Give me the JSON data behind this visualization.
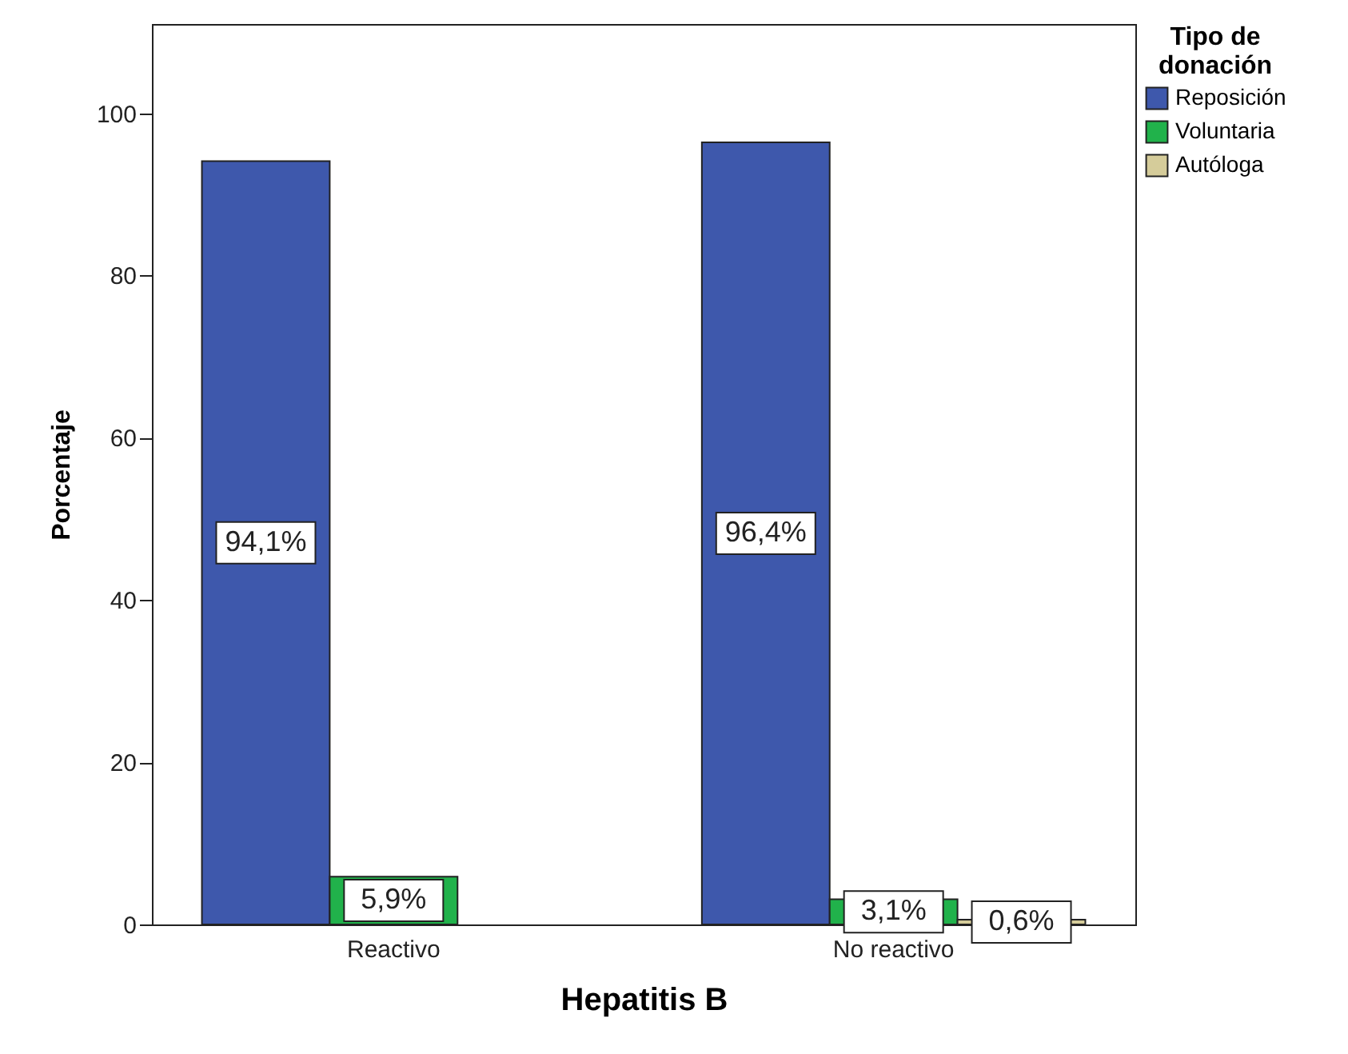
{
  "chart_data": {
    "type": "bar",
    "xlabel": "Hepatitis B",
    "ylabel": "Porcentaje",
    "legend_title": "Tipo de donación",
    "legend": "top right",
    "categories": [
      "Reactivo",
      "No reactivo"
    ],
    "series": [
      {
        "name": "Reposición",
        "color": "#3e58ac",
        "values": [
          94.1,
          96.4
        ],
        "value_labels": [
          "94,1%",
          "96,4%"
        ]
      },
      {
        "name": "Voluntaria",
        "color": "#21b24b",
        "values": [
          5.9,
          3.1
        ],
        "value_labels": [
          "5,9%",
          "3,1%"
        ]
      },
      {
        "name": "Autóloga",
        "color": "#d5cc9a",
        "values": [
          null,
          0.6
        ],
        "value_labels": [
          null,
          "0,6%"
        ]
      }
    ],
    "ylim": [
      0,
      111
    ],
    "yticks": [
      0,
      20,
      40,
      60,
      80,
      100
    ],
    "grid": false
  }
}
